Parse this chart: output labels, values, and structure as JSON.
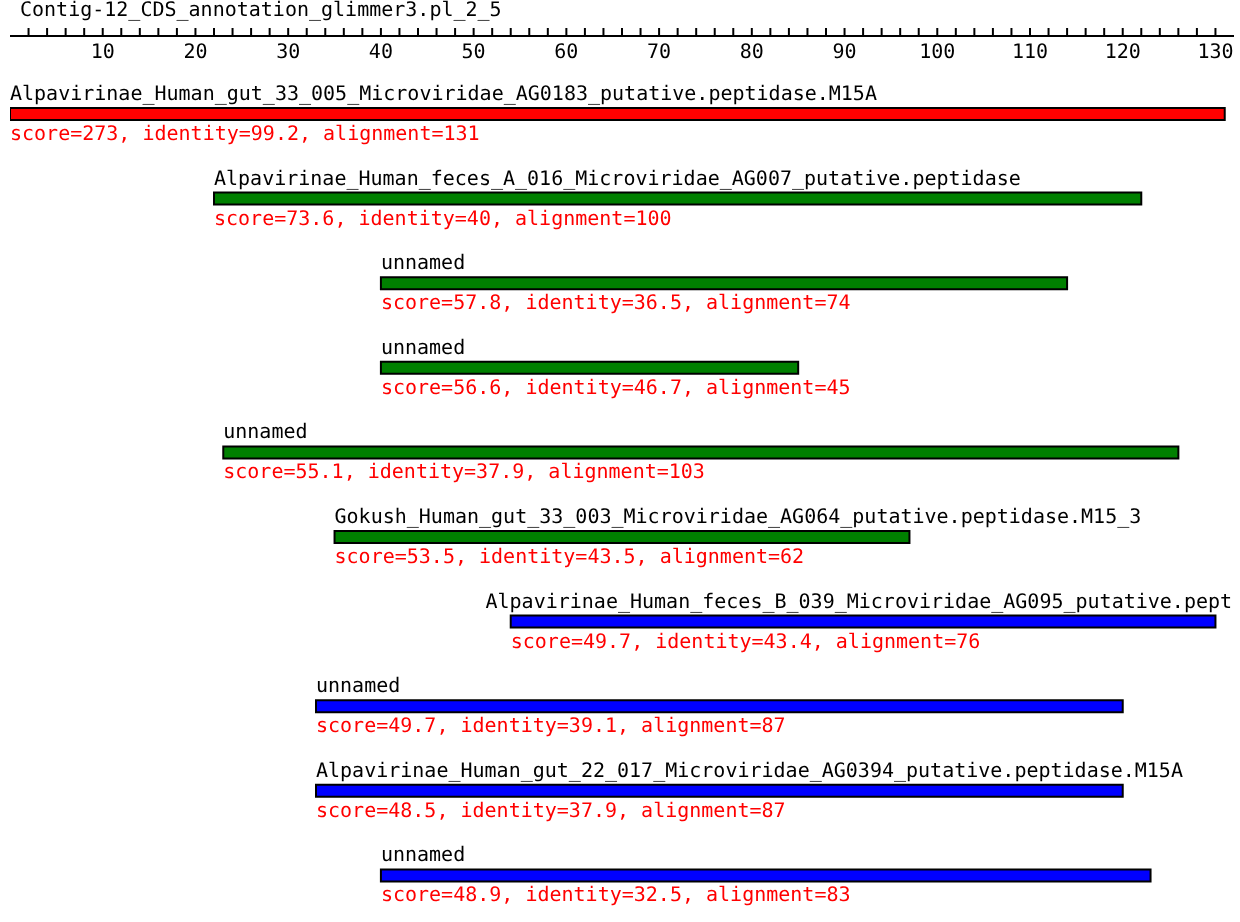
{
  "chart_data": {
    "type": "bar",
    "orientation": "horizontal",
    "title": "Contig-12_CDS_annotation_glimmer3.pl_2_5",
    "categories": [
      "Alpavirinae_Human_gut_33_005_Microviridae_AG0183_putative.peptidase.M15A",
      "Alpavirinae_Human_feces_A_016_Microviridae_AG007_putative.peptidase",
      "unnamed",
      "unnamed",
      "unnamed",
      "Gokush_Human_gut_33_003_Microviridae_AG064_putative.peptidase.M15_3",
      "Alpavirinae_Human_feces_B_039_Microviridae_AG095_putative.pept",
      "unnamed",
      "Alpavirinae_Human_gut_22_017_Microviridae_AG0394_putative.peptidase.M15A",
      "unnamed"
    ],
    "base": [
      0,
      22,
      40,
      40,
      23,
      35,
      54,
      33,
      33,
      40
    ],
    "values": [
      131,
      100,
      74,
      45,
      103,
      62,
      76,
      87,
      87,
      83
    ],
    "colors": [
      "#ff0000",
      "#008000",
      "#008000",
      "#008000",
      "#008000",
      "#008000",
      "#0000ff",
      "#0000ff",
      "#0000ff",
      "#0000ff"
    ],
    "value_labels": [
      "score=273, identity=99.2, alignment=131",
      "score=73.6, identity=40, alignment=100",
      "score=57.8, identity=36.5, alignment=74",
      "score=56.6, identity=46.7, alignment=45",
      "score=55.1, identity=37.9, alignment=103",
      "score=53.5, identity=43.5, alignment=62",
      "score=49.7, identity=43.4, alignment=76",
      "score=49.7, identity=39.1, alignment=87",
      "score=48.5, identity=37.9, alignment=87",
      "score=48.9, identity=32.5, alignment=83"
    ],
    "xlim": [
      0,
      132
    ],
    "xticks": [
      {
        "value": 2,
        "label": null
      },
      {
        "value": 4,
        "label": null
      },
      {
        "value": 6,
        "label": null
      },
      {
        "value": 8,
        "label": null
      },
      10,
      {
        "value": 12,
        "label": null
      },
      {
        "value": 14,
        "label": null
      },
      {
        "value": 16,
        "label": null
      },
      {
        "value": 18,
        "label": null
      },
      20,
      {
        "value": 22,
        "label": null
      },
      {
        "value": 24,
        "label": null
      },
      {
        "value": 26,
        "label": null
      },
      {
        "value": 28,
        "label": null
      },
      30,
      {
        "value": 32,
        "label": null
      },
      {
        "value": 34,
        "label": null
      },
      {
        "value": 36,
        "label": null
      },
      {
        "value": 38,
        "label": null
      },
      40,
      {
        "value": 42,
        "label": null
      },
      {
        "value": 44,
        "label": null
      },
      {
        "value": 46,
        "label": null
      },
      {
        "value": 48,
        "label": null
      },
      50,
      {
        "value": 52,
        "label": null
      },
      {
        "value": 54,
        "label": null
      },
      {
        "value": 56,
        "label": null
      },
      {
        "value": 58,
        "label": null
      },
      60,
      {
        "value": 62,
        "label": null
      },
      {
        "value": 64,
        "label": null
      },
      {
        "value": 66,
        "label": null
      },
      {
        "value": 68,
        "label": null
      },
      70,
      {
        "value": 72,
        "label": null
      },
      {
        "value": 74,
        "label": null
      },
      {
        "value": 76,
        "label": null
      },
      {
        "value": 78,
        "label": null
      },
      80,
      {
        "value": 82,
        "label": null
      },
      {
        "value": 84,
        "label": null
      },
      {
        "value": 86,
        "label": null
      },
      {
        "value": 88,
        "label": null
      },
      90,
      {
        "value": 92,
        "label": null
      },
      {
        "value": 94,
        "label": null
      },
      {
        "value": 96,
        "label": null
      },
      {
        "value": 98,
        "label": null
      },
      100,
      {
        "value": 102,
        "label": null
      },
      {
        "value": 104,
        "label": null
      },
      {
        "value": 106,
        "label": null
      },
      {
        "value": 108,
        "label": null
      },
      110,
      {
        "value": 112,
        "label": null
      },
      {
        "value": 114,
        "label": null
      },
      {
        "value": 116,
        "label": null
      },
      {
        "value": 118,
        "label": null
      },
      120,
      {
        "value": 122,
        "label": null
      },
      {
        "value": 124,
        "label": null
      },
      {
        "value": 126,
        "label": null
      },
      {
        "value": 128,
        "label": null
      },
      130
    ],
    "grid": false,
    "legend": false
  }
}
